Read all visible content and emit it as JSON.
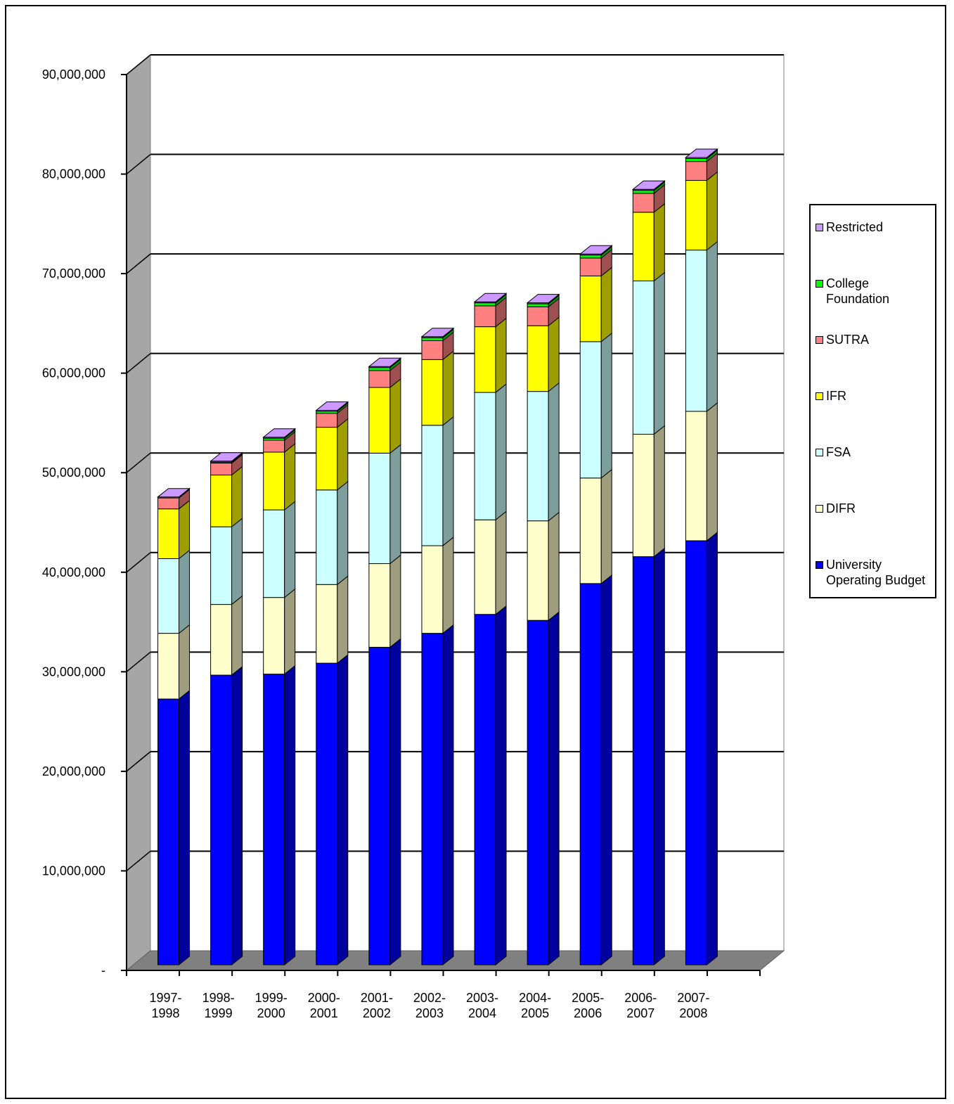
{
  "chart_data": {
    "type": "bar",
    "stacked": true,
    "three_d": true,
    "categories": [
      [
        "1997-",
        "1998"
      ],
      [
        "1998-",
        "1999"
      ],
      [
        "1999-",
        "2000"
      ],
      [
        "2000-",
        "2001"
      ],
      [
        "2001-",
        "2002"
      ],
      [
        "2002-",
        "2003"
      ],
      [
        "2003-",
        "2004"
      ],
      [
        "2004-",
        "2005"
      ],
      [
        "2005-",
        "2006"
      ],
      [
        "2006-",
        "2007"
      ],
      [
        "2007-",
        "2008"
      ]
    ],
    "series": [
      {
        "name": "University Operating Budget",
        "color": "#0000ff",
        "values": [
          26700000,
          29100000,
          29200000,
          30300000,
          31900000,
          33300000,
          35200000,
          34600000,
          38300000,
          41000000,
          42600000
        ]
      },
      {
        "name": "DIFR",
        "color": "#ffffcc",
        "values": [
          6600000,
          7100000,
          7700000,
          7900000,
          8400000,
          8800000,
          9500000,
          10000000,
          10600000,
          12300000,
          13000000
        ]
      },
      {
        "name": "FSA",
        "color": "#ccffff",
        "values": [
          7500000,
          7800000,
          8800000,
          9500000,
          11100000,
          12100000,
          12800000,
          13000000,
          13700000,
          15400000,
          16200000
        ]
      },
      {
        "name": "IFR",
        "color": "#ffff00",
        "values": [
          5000000,
          5200000,
          5800000,
          6300000,
          6600000,
          6600000,
          6600000,
          6600000,
          6600000,
          6900000,
          7000000
        ]
      },
      {
        "name": "SUTRA",
        "color": "#ff8080",
        "values": [
          1100000,
          1200000,
          1200000,
          1400000,
          1700000,
          1900000,
          2100000,
          1900000,
          1800000,
          1900000,
          1900000
        ]
      },
      {
        "name": "College Foundation",
        "color": "#00ff00",
        "values": [
          0,
          100000,
          200000,
          200000,
          300000,
          300000,
          300000,
          300000,
          300000,
          300000,
          300000
        ]
      },
      {
        "name": "Restricted",
        "color": "#cc99ff",
        "values": [
          100000,
          100000,
          100000,
          100000,
          100000,
          100000,
          100000,
          100000,
          100000,
          100000,
          100000
        ]
      }
    ],
    "y_ticks": [
      "-",
      "10,000,000",
      "20,000,000",
      "30,000,000",
      "40,000,000",
      "50,000,000",
      "60,000,000",
      "70,000,000",
      "80,000,000",
      "90,000,000"
    ],
    "ylim": [
      0,
      90000000
    ],
    "grid": true,
    "legend_position": "right",
    "legend_order": [
      "Restricted",
      "College Foundation",
      "SUTRA",
      "IFR",
      "FSA",
      "DIFR",
      "University Operating Budget"
    ],
    "legend_labels": {
      "Restricted": [
        "Restricted"
      ],
      "College Foundation": [
        "College",
        "Foundation"
      ],
      "SUTRA": [
        "SUTRA"
      ],
      "IFR": [
        "IFR"
      ],
      "FSA": [
        "FSA"
      ],
      "DIFR": [
        "DIFR"
      ],
      "University Operating Budget": [
        "University",
        "Operating Budget"
      ]
    },
    "colors": {
      "wall_side": "#a6a6a6",
      "floor": "#808080",
      "back_wall": "#ffffff"
    }
  }
}
